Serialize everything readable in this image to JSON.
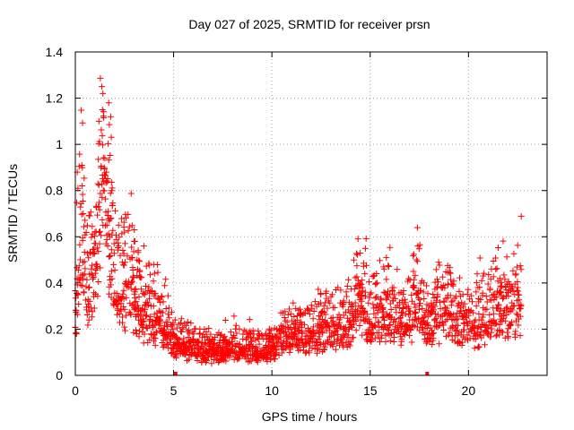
{
  "chart_data": {
    "type": "scatter",
    "title": "Day 027 of 2025, SRMTID for receiver prsn",
    "xlabel": "GPS time / hours",
    "ylabel": "SRMTID / TECUs",
    "xlim": [
      0,
      24
    ],
    "ylim": [
      0,
      1.4
    ],
    "x_ticks": [
      "0",
      "5",
      "10",
      "15",
      "20"
    ],
    "x_tick_values": [
      0,
      5,
      10,
      15,
      20
    ],
    "y_ticks": [
      "0",
      "0.2",
      "0.4",
      "0.6",
      "0.8",
      "1",
      "1.2",
      "1.4"
    ],
    "y_tick_values": [
      0,
      0.2,
      0.4,
      0.6,
      0.8,
      1.0,
      1.2,
      1.4
    ],
    "grid": true,
    "marker": "plus",
    "series_color": "#ff0000",
    "gap_markers_x": [
      5.1,
      17.9
    ],
    "series": [
      {
        "name": "SRMTID",
        "envelope": [
          {
            "x": 0.0,
            "y": 0.2
          },
          {
            "x": 0.3,
            "y": 0.55
          },
          {
            "x": 0.6,
            "y": 0.3
          },
          {
            "x": 1.0,
            "y": 0.4
          },
          {
            "x": 1.4,
            "y": 0.8
          },
          {
            "x": 1.8,
            "y": 0.45
          },
          {
            "x": 2.2,
            "y": 0.3
          },
          {
            "x": 2.8,
            "y": 0.35
          },
          {
            "x": 3.3,
            "y": 0.25
          },
          {
            "x": 4.0,
            "y": 0.22
          },
          {
            "x": 4.6,
            "y": 0.2
          },
          {
            "x": 5.0,
            "y": 0.13
          },
          {
            "x": 6.0,
            "y": 0.1
          },
          {
            "x": 7.0,
            "y": 0.09
          },
          {
            "x": 8.0,
            "y": 0.1
          },
          {
            "x": 9.0,
            "y": 0.09
          },
          {
            "x": 10.0,
            "y": 0.1
          },
          {
            "x": 10.6,
            "y": 0.14
          },
          {
            "x": 11.2,
            "y": 0.16
          },
          {
            "x": 12.0,
            "y": 0.15
          },
          {
            "x": 13.0,
            "y": 0.18
          },
          {
            "x": 14.0,
            "y": 0.2
          },
          {
            "x": 14.4,
            "y": 0.32
          },
          {
            "x": 15.0,
            "y": 0.2
          },
          {
            "x": 16.0,
            "y": 0.24
          },
          {
            "x": 16.8,
            "y": 0.2
          },
          {
            "x": 17.4,
            "y": 0.28
          },
          {
            "x": 18.0,
            "y": 0.18
          },
          {
            "x": 18.6,
            "y": 0.24
          },
          {
            "x": 19.4,
            "y": 0.2
          },
          {
            "x": 20.2,
            "y": 0.18
          },
          {
            "x": 21.0,
            "y": 0.22
          },
          {
            "x": 21.6,
            "y": 0.26
          },
          {
            "x": 22.2,
            "y": 0.22
          },
          {
            "x": 22.7,
            "y": 0.28
          }
        ],
        "peaks": [
          {
            "x": 0.1,
            "y": 0.88
          },
          {
            "x": 0.35,
            "y": 0.82
          },
          {
            "x": 0.4,
            "y": 0.7
          },
          {
            "x": 1.0,
            "y": 0.62
          },
          {
            "x": 1.2,
            "y": 1.1
          },
          {
            "x": 1.35,
            "y": 1.25
          },
          {
            "x": 1.4,
            "y": 1.22
          },
          {
            "x": 1.5,
            "y": 0.94
          },
          {
            "x": 1.7,
            "y": 1.18
          },
          {
            "x": 1.8,
            "y": 1.12
          },
          {
            "x": 1.85,
            "y": 0.8
          },
          {
            "x": 2.2,
            "y": 0.65
          },
          {
            "x": 2.5,
            "y": 0.62
          },
          {
            "x": 3.0,
            "y": 0.63
          },
          {
            "x": 3.2,
            "y": 0.54
          },
          {
            "x": 4.0,
            "y": 0.48
          },
          {
            "x": 14.4,
            "y": 0.41
          },
          {
            "x": 16.2,
            "y": 0.38
          },
          {
            "x": 17.2,
            "y": 0.45
          },
          {
            "x": 18.4,
            "y": 0.38
          },
          {
            "x": 21.6,
            "y": 0.42
          },
          {
            "x": 22.5,
            "y": 0.38
          }
        ]
      }
    ]
  }
}
